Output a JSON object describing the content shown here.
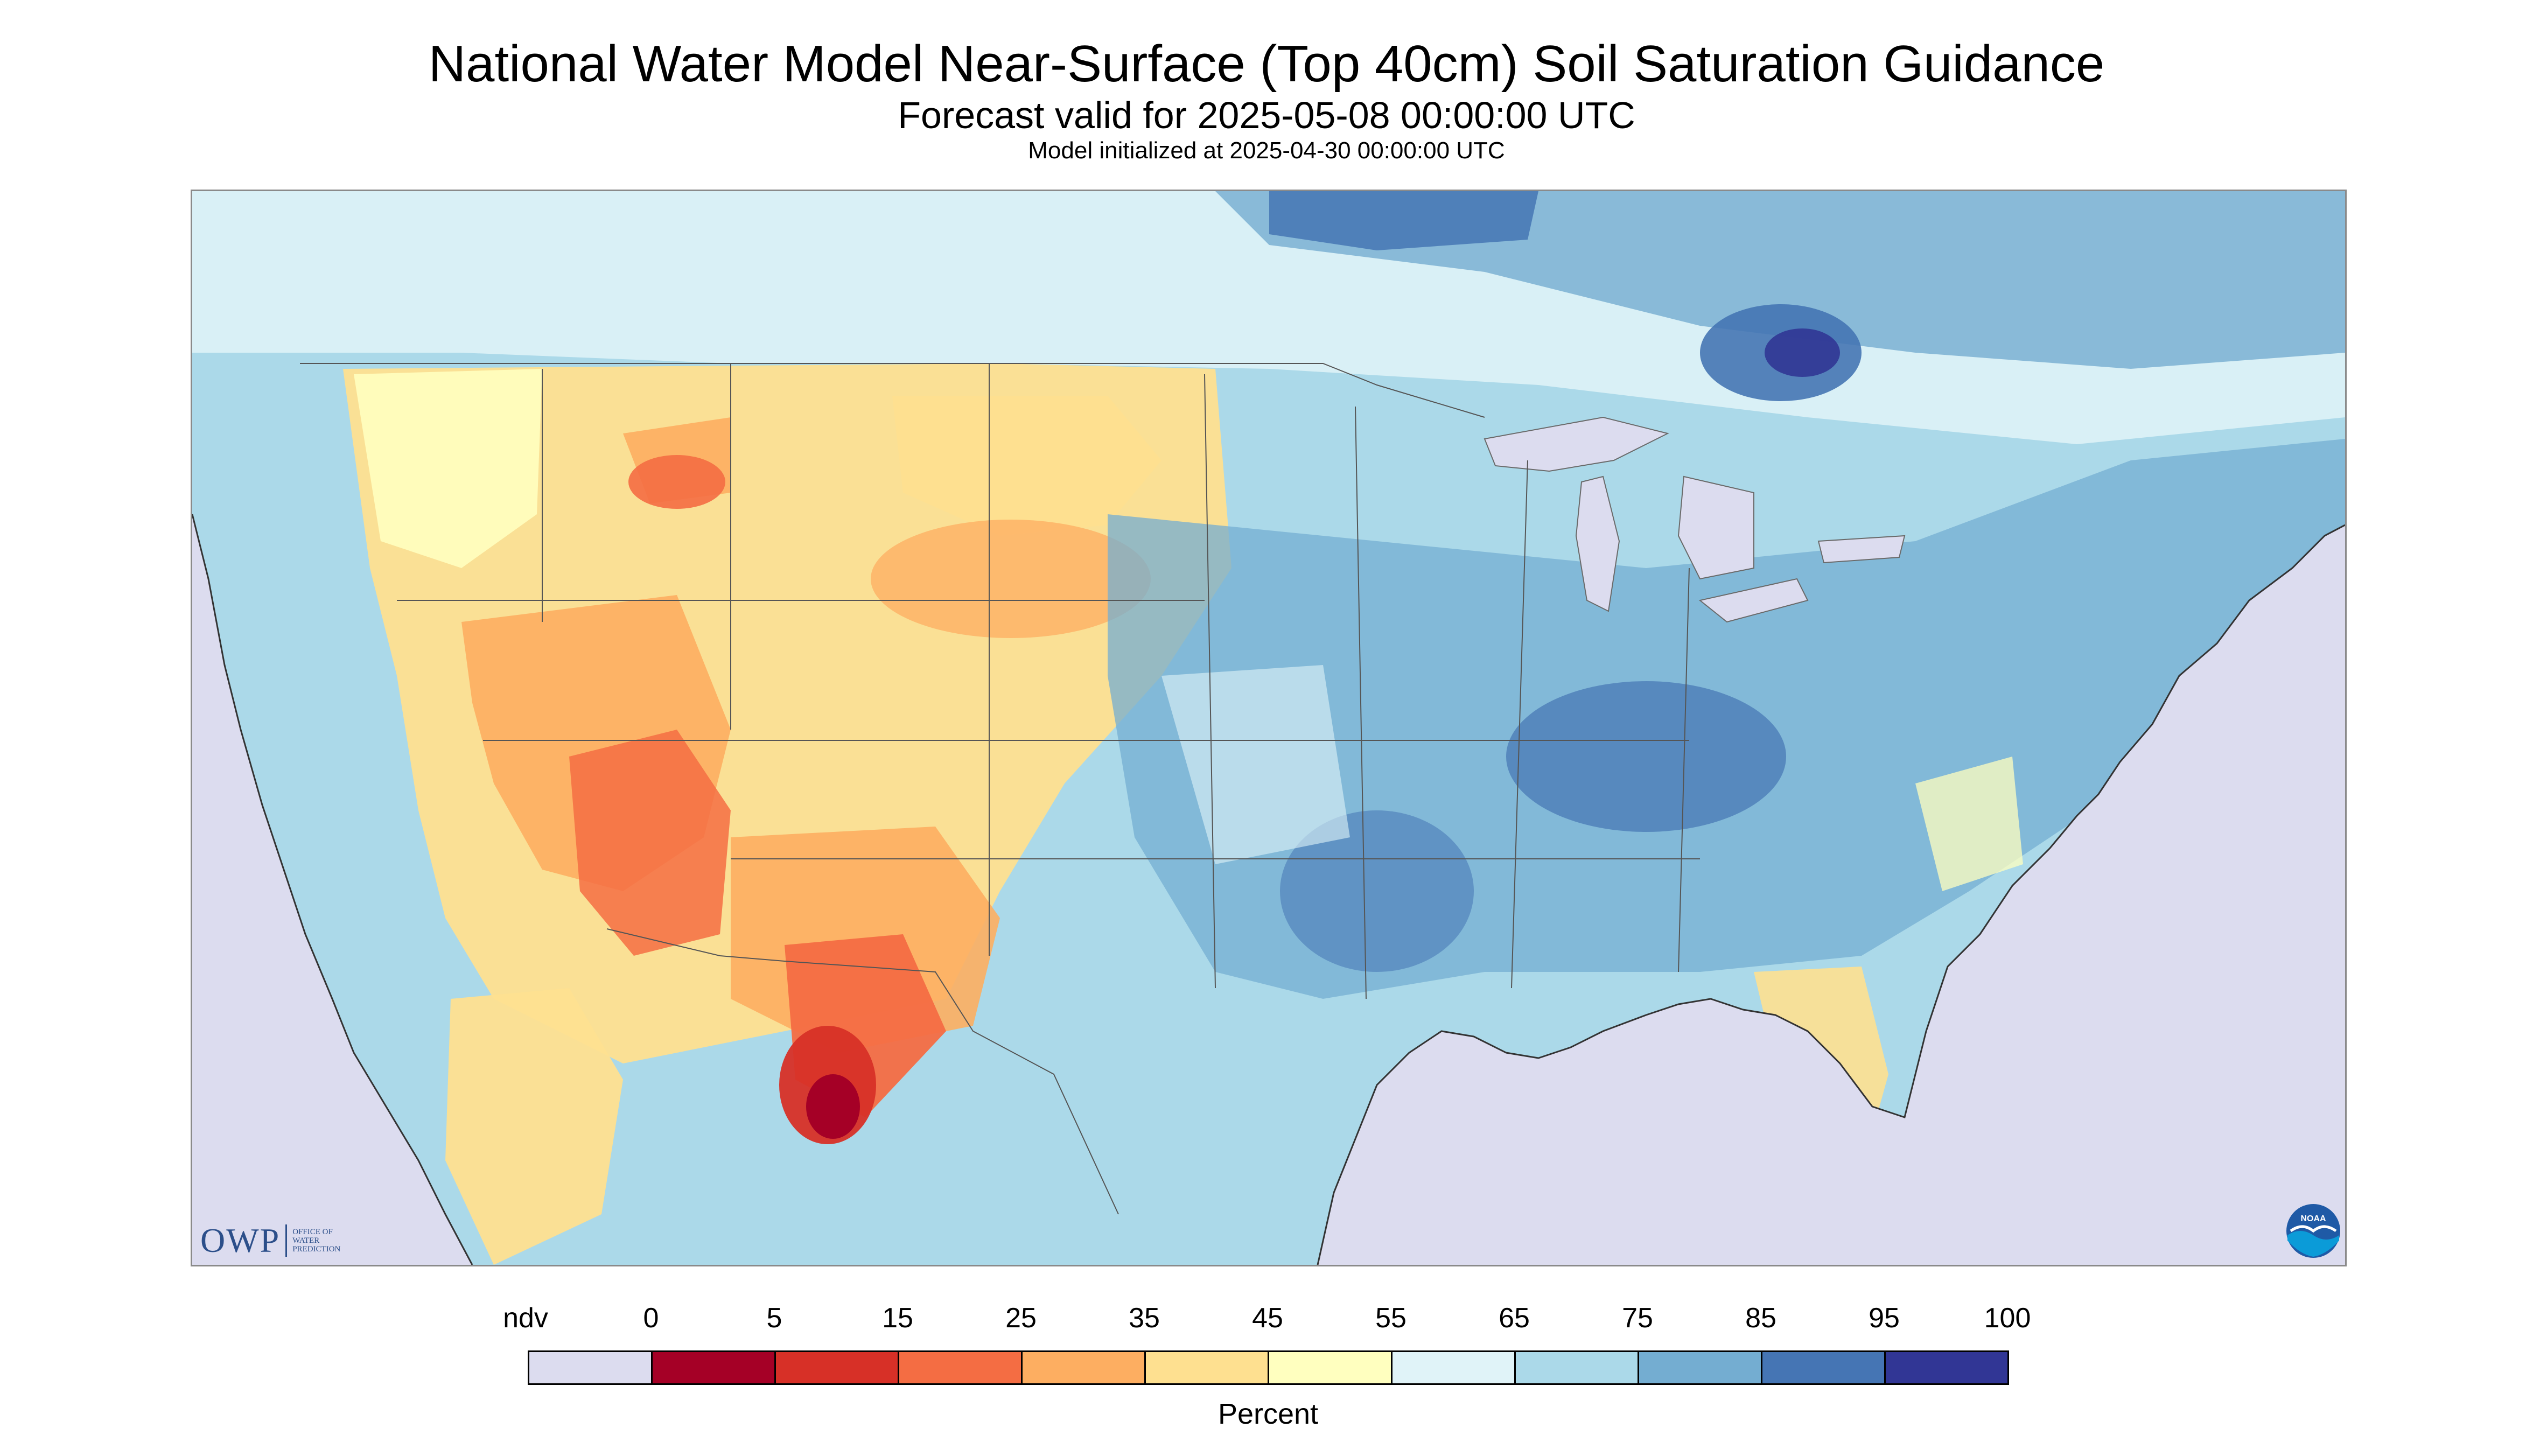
{
  "header": {
    "title": "National Water Model Near-Surface (Top 40cm) Soil Saturation Guidance",
    "subtitle": "Forecast valid for 2025-05-08 00:00:00 UTC",
    "init_line": "Model initialized at 2025-04-30 00:00:00 UTC"
  },
  "map": {
    "region": "CONUS",
    "variable": "Near-surface soil saturation",
    "nodata_color": "#dcdcef",
    "ocean_color": "#dcdcef",
    "lakes_color": "#dcdcef"
  },
  "logos": {
    "owp_mark": "OWP",
    "owp_text": [
      "OFFICE OF",
      "WATER",
      "PREDICTION"
    ],
    "noaa_text": "NOAA"
  },
  "legend": {
    "title": "Percent",
    "nodata_label": "ndv",
    "tick_labels": [
      "0",
      "5",
      "15",
      "25",
      "35",
      "45",
      "55",
      "65",
      "75",
      "85",
      "95",
      "100"
    ],
    "bins": [
      {
        "range": "ndv",
        "color": "#dcdcef"
      },
      {
        "range": "0-5",
        "color": "#a50026"
      },
      {
        "range": "5-15",
        "color": "#d73027"
      },
      {
        "range": "15-25",
        "color": "#f46d43"
      },
      {
        "range": "25-35",
        "color": "#fdae61"
      },
      {
        "range": "35-45",
        "color": "#fee090"
      },
      {
        "range": "45-55",
        "color": "#ffffbf"
      },
      {
        "range": "55-65",
        "color": "#e0f3f8"
      },
      {
        "range": "65-75",
        "color": "#abd9e9"
      },
      {
        "range": "75-85",
        "color": "#74add1"
      },
      {
        "range": "85-95",
        "color": "#4575b4"
      },
      {
        "range": "95-100",
        "color": "#313695"
      }
    ]
  }
}
